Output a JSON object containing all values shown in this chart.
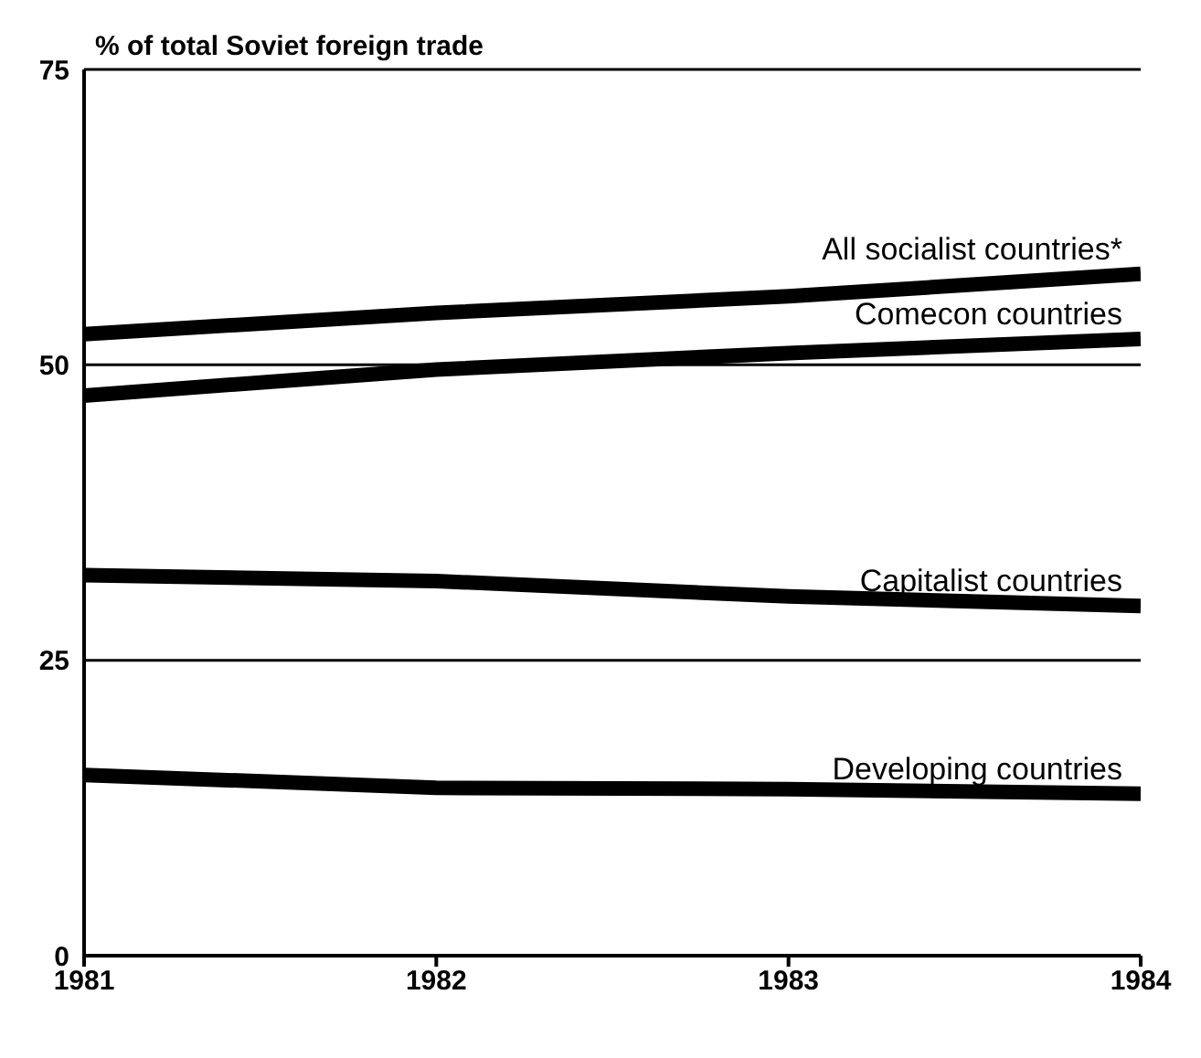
{
  "chart_data": {
    "type": "line",
    "ylabel": "% of total Soviet foreign trade",
    "x": [
      1981,
      1982,
      1983,
      1984
    ],
    "xlim": [
      1981,
      1984
    ],
    "xticks": [
      1981,
      1982,
      1983,
      1984
    ],
    "ylim": [
      0,
      75
    ],
    "yticks": [
      0,
      25,
      50,
      75
    ],
    "grid": "y",
    "marker": "none",
    "line_style": "solid",
    "series": [
      {
        "name": "All socialist countries*",
        "color": "#000000",
        "values": [
          52.6,
          54.4,
          55.8,
          57.7
        ]
      },
      {
        "name": "Comecon countries",
        "color": "#000000",
        "values": [
          47.4,
          49.6,
          51.0,
          52.2
        ]
      },
      {
        "name": "Capitalist countries",
        "color": "#000000",
        "values": [
          32.2,
          31.7,
          30.4,
          29.6
        ]
      },
      {
        "name": "Developing countries",
        "color": "#000000",
        "values": [
          15.3,
          14.2,
          14.1,
          13.7
        ]
      }
    ]
  }
}
